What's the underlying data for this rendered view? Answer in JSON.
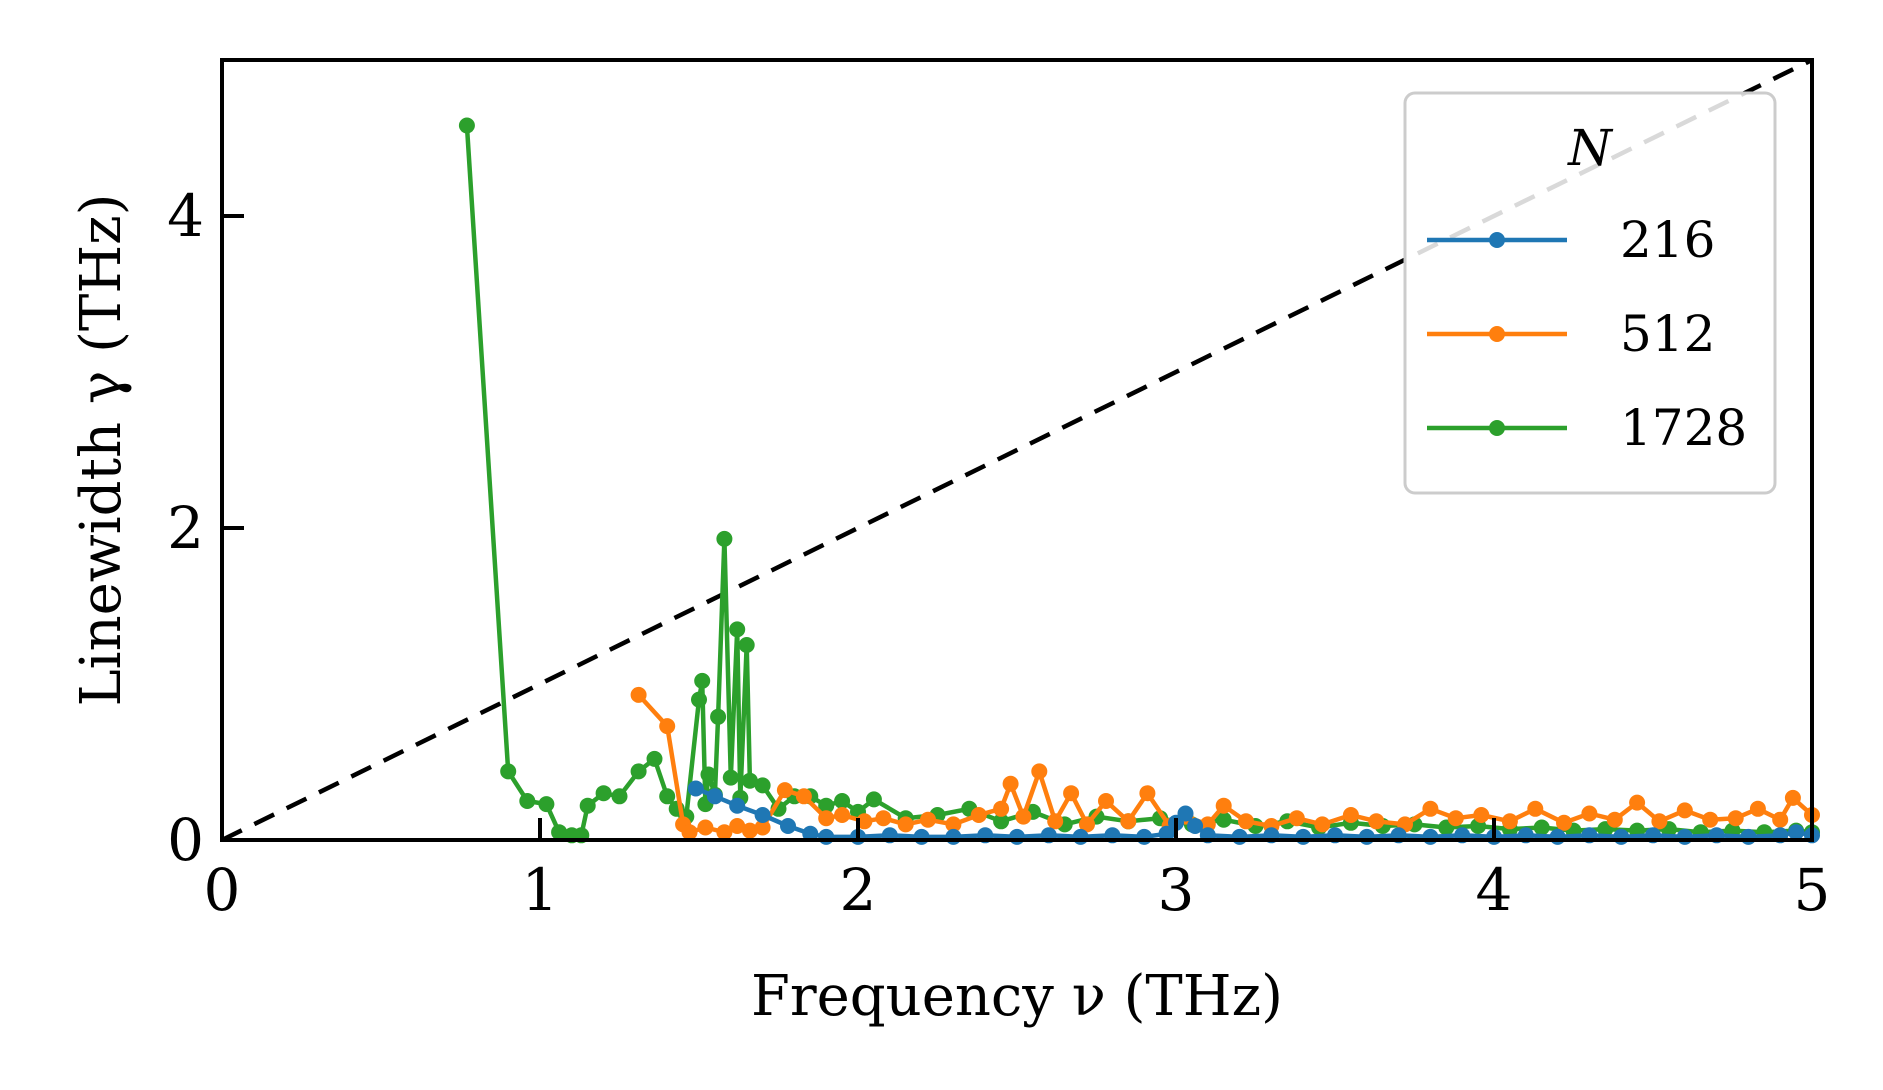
{
  "chart_data": {
    "type": "line",
    "title": "",
    "xlabel": "Frequency ν (THz)",
    "ylabel": "Linewidth γ (THz)",
    "xlim": [
      0,
      5
    ],
    "ylim": [
      0,
      5
    ],
    "xticks": [
      0,
      1,
      2,
      3,
      4,
      5
    ],
    "yticks": [
      0,
      2,
      4
    ],
    "xtick_labels": [
      "0",
      "1",
      "2",
      "3",
      "4",
      "5"
    ],
    "ytick_labels": [
      "0",
      "2",
      "4"
    ],
    "grid": false,
    "legend_title": "N",
    "legend_position": "top-right",
    "reference_line": {
      "name": "γ = ν",
      "style": "dashed",
      "color": "#000000",
      "x": [
        0,
        5
      ],
      "y": [
        0,
        5
      ]
    },
    "series": [
      {
        "name": "216",
        "color": "#1f77b4",
        "x": [
          1.49,
          1.55,
          1.62,
          1.7,
          1.78,
          1.85,
          1.9,
          2.0,
          2.1,
          2.2,
          2.3,
          2.4,
          2.5,
          2.6,
          2.7,
          2.8,
          2.9,
          2.97,
          3.0,
          3.03,
          3.06,
          3.1,
          3.2,
          3.3,
          3.4,
          3.5,
          3.6,
          3.7,
          3.8,
          3.9,
          4.0,
          4.1,
          4.2,
          4.3,
          4.4,
          4.5,
          4.6,
          4.7,
          4.8,
          4.9,
          4.95,
          5.0
        ],
        "y": [
          0.33,
          0.28,
          0.22,
          0.16,
          0.09,
          0.04,
          0.02,
          0.02,
          0.03,
          0.02,
          0.02,
          0.03,
          0.02,
          0.03,
          0.02,
          0.03,
          0.02,
          0.04,
          0.11,
          0.17,
          0.09,
          0.03,
          0.02,
          0.03,
          0.02,
          0.03,
          0.02,
          0.03,
          0.02,
          0.03,
          0.02,
          0.03,
          0.02,
          0.03,
          0.02,
          0.03,
          0.02,
          0.03,
          0.02,
          0.03,
          0.05,
          0.03
        ]
      },
      {
        "name": "512",
        "color": "#ff7f0e",
        "x": [
          1.31,
          1.4,
          1.45,
          1.47,
          1.52,
          1.58,
          1.62,
          1.66,
          1.7,
          1.77,
          1.83,
          1.9,
          1.95,
          2.02,
          2.08,
          2.15,
          2.22,
          2.3,
          2.38,
          2.45,
          2.48,
          2.52,
          2.57,
          2.62,
          2.67,
          2.72,
          2.78,
          2.85,
          2.91,
          2.98,
          3.03,
          3.1,
          3.15,
          3.22,
          3.3,
          3.38,
          3.46,
          3.55,
          3.63,
          3.72,
          3.8,
          3.88,
          3.96,
          4.05,
          4.13,
          4.22,
          4.3,
          4.38,
          4.45,
          4.52,
          4.6,
          4.68,
          4.76,
          4.83,
          4.9,
          4.94,
          5.0
        ],
        "y": [
          0.93,
          0.73,
          0.1,
          0.05,
          0.08,
          0.05,
          0.09,
          0.06,
          0.08,
          0.32,
          0.28,
          0.14,
          0.16,
          0.12,
          0.14,
          0.1,
          0.13,
          0.1,
          0.16,
          0.2,
          0.36,
          0.15,
          0.44,
          0.12,
          0.3,
          0.1,
          0.25,
          0.12,
          0.3,
          0.09,
          0.15,
          0.1,
          0.22,
          0.12,
          0.09,
          0.14,
          0.1,
          0.16,
          0.12,
          0.1,
          0.2,
          0.14,
          0.16,
          0.12,
          0.2,
          0.11,
          0.17,
          0.13,
          0.24,
          0.12,
          0.19,
          0.13,
          0.14,
          0.2,
          0.13,
          0.27,
          0.16
        ]
      },
      {
        "name": "1728",
        "color": "#2ca02c",
        "x": [
          0.77,
          0.9,
          0.96,
          1.02,
          1.06,
          1.1,
          1.13,
          1.15,
          1.2,
          1.25,
          1.31,
          1.36,
          1.4,
          1.43,
          1.46,
          1.5,
          1.51,
          1.52,
          1.53,
          1.55,
          1.56,
          1.58,
          1.6,
          1.62,
          1.63,
          1.65,
          1.66,
          1.7,
          1.75,
          1.8,
          1.85,
          1.9,
          1.95,
          2.0,
          2.05,
          2.15,
          2.25,
          2.35,
          2.45,
          2.55,
          2.65,
          2.75,
          2.85,
          2.95,
          3.05,
          3.15,
          3.25,
          3.35,
          3.45,
          3.55,
          3.65,
          3.75,
          3.85,
          3.95,
          4.05,
          4.15,
          4.25,
          4.35,
          4.45,
          4.55,
          4.65,
          4.75,
          4.85,
          4.95,
          5.0
        ],
        "y": [
          4.58,
          0.44,
          0.25,
          0.23,
          0.05,
          0.03,
          0.03,
          0.22,
          0.3,
          0.28,
          0.44,
          0.52,
          0.28,
          0.2,
          0.15,
          0.9,
          1.02,
          0.23,
          0.42,
          0.29,
          0.79,
          1.93,
          0.4,
          1.35,
          0.27,
          1.25,
          0.38,
          0.35,
          0.2,
          0.28,
          0.28,
          0.22,
          0.25,
          0.18,
          0.26,
          0.14,
          0.16,
          0.2,
          0.12,
          0.18,
          0.1,
          0.15,
          0.12,
          0.14,
          0.1,
          0.13,
          0.09,
          0.12,
          0.08,
          0.11,
          0.09,
          0.1,
          0.08,
          0.09,
          0.07,
          0.08,
          0.06,
          0.07,
          0.06,
          0.07,
          0.05,
          0.06,
          0.05,
          0.06,
          0.05
        ]
      }
    ]
  }
}
